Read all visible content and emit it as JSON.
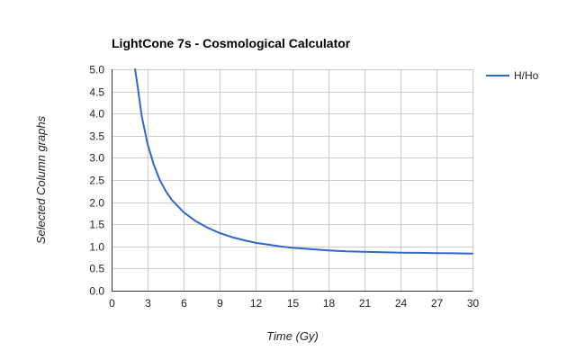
{
  "chart_data": {
    "type": "line",
    "title": "LightCone 7s - Cosmological Calculator",
    "xlabel": "Time (Gy)",
    "ylabel": "Selected Column graphs",
    "xlim": [
      0,
      30
    ],
    "ylim": [
      0,
      5
    ],
    "x_ticks": [
      "0",
      "3",
      "6",
      "9",
      "12",
      "15",
      "18",
      "21",
      "24",
      "27",
      "30"
    ],
    "y_ticks": [
      "0.0",
      "0.5",
      "1.0",
      "1.5",
      "2.0",
      "2.5",
      "3.0",
      "3.5",
      "4.0",
      "4.5",
      "5.0"
    ],
    "grid": true,
    "legend_position": "right",
    "series": [
      {
        "name": "H/Ho",
        "color": "#3366cc",
        "points": [
          [
            1.95,
            5.0
          ],
          [
            2.2,
            4.55
          ],
          [
            2.5,
            3.95
          ],
          [
            3.0,
            3.3
          ],
          [
            3.5,
            2.85
          ],
          [
            4.0,
            2.5
          ],
          [
            4.5,
            2.25
          ],
          [
            5.0,
            2.05
          ],
          [
            6.0,
            1.77
          ],
          [
            7.0,
            1.57
          ],
          [
            8.0,
            1.42
          ],
          [
            9.0,
            1.3
          ],
          [
            10.0,
            1.21
          ],
          [
            11.0,
            1.14
          ],
          [
            12.0,
            1.08
          ],
          [
            13.0,
            1.04
          ],
          [
            14.0,
            1.0
          ],
          [
            15.0,
            0.97
          ],
          [
            16.5,
            0.94
          ],
          [
            18.0,
            0.91
          ],
          [
            19.5,
            0.89
          ],
          [
            21.0,
            0.88
          ],
          [
            22.5,
            0.87
          ],
          [
            24.0,
            0.86
          ],
          [
            25.5,
            0.855
          ],
          [
            27.0,
            0.85
          ],
          [
            28.5,
            0.845
          ],
          [
            30.0,
            0.84
          ]
        ]
      }
    ]
  }
}
